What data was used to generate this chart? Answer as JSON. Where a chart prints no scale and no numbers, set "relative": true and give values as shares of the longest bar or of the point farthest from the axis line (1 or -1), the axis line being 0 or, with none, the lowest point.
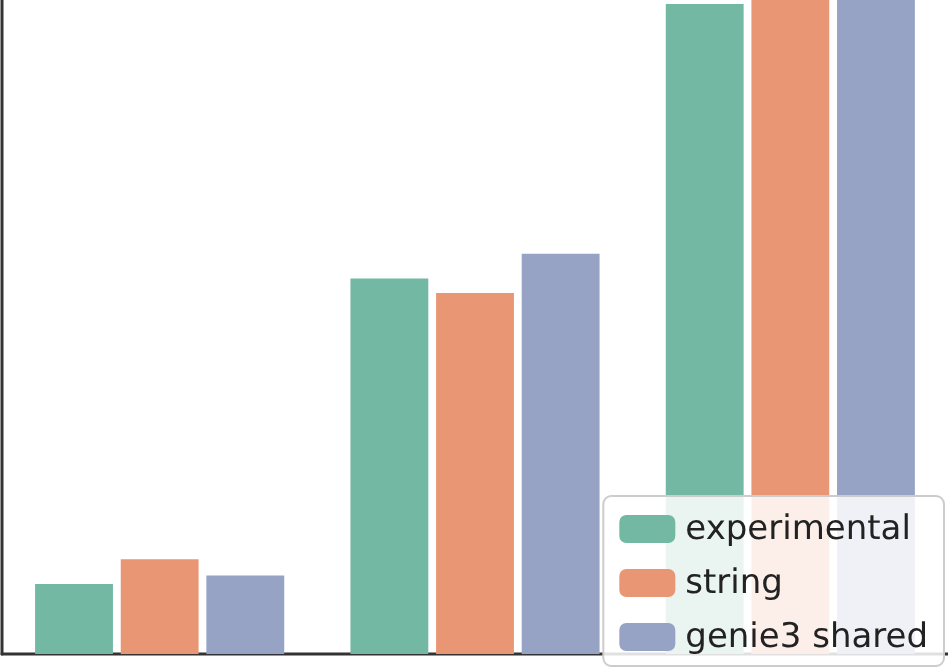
{
  "chart_data": {
    "type": "bar",
    "relative": true,
    "categories": [
      null,
      null,
      null
    ],
    "series": [
      {
        "name": "experimental",
        "color": "#72b8a2",
        "values": [
          0.107,
          0.574,
          0.994
        ]
      },
      {
        "name": "string",
        "color": "#e99675",
        "values": [
          0.145,
          0.552,
          1
        ]
      },
      {
        "name": "genie3 shared",
        "color": "#96a3c4",
        "values": [
          0.12,
          0.612,
          1
        ]
      }
    ],
    "legend": "bottom right",
    "grid": false
  }
}
